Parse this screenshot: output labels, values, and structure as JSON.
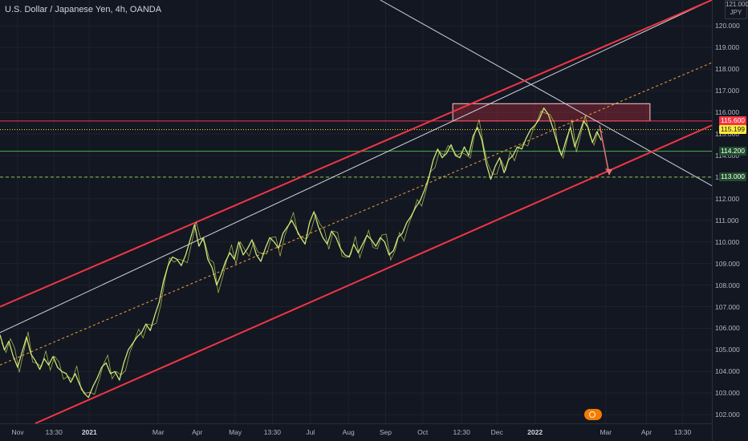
{
  "header": {
    "title": "U.S. Dollar / Japanese Yen, 4h, OANDA"
  },
  "currency_badge": {
    "top": "121.000",
    "label": "JPY"
  },
  "price_labels": [
    {
      "value": "115.600",
      "bg": "#f23645",
      "fg": "#ffffff"
    },
    {
      "value": "115.199",
      "bg": "#ffeb3b",
      "fg": "#131722"
    },
    {
      "value": "114.200",
      "bg": "#1e4d2b",
      "fg": "#ffffff"
    },
    {
      "value": "113.000",
      "bg": "#1e4d2b",
      "fg": "#ffffff"
    }
  ],
  "colors": {
    "background": "#131722",
    "grid": "#1e222d",
    "price_line": "#c8e67a",
    "price_line_alt": "#e8ea5a",
    "channel": "#f23645",
    "midline": "#f5a13a",
    "trendline": "#d1d4dc",
    "resistance_zone": "#f23645",
    "support_line": "#4caf50"
  },
  "chart_data": {
    "type": "line",
    "title": "U.S. Dollar / Japanese Yen, 4h, OANDA",
    "xlabel": "",
    "ylabel": "",
    "ylim": [
      101.6,
      121.2
    ],
    "y_ticks": [
      "102.000",
      "103.000",
      "104.000",
      "105.000",
      "106.000",
      "107.000",
      "108.000",
      "109.000",
      "110.000",
      "111.000",
      "112.000",
      "113.000",
      "114.000",
      "115.000",
      "116.000",
      "117.000",
      "118.000",
      "119.000",
      "120.000"
    ],
    "x_ticks": [
      {
        "label": "Nov",
        "t": 2.0,
        "year": false
      },
      {
        "label": "13:30",
        "t": 6.1,
        "year": false
      },
      {
        "label": "2021",
        "t": 10.1,
        "year": true
      },
      {
        "label": "Mar",
        "t": 17.9,
        "year": false
      },
      {
        "label": "Apr",
        "t": 22.3,
        "year": false
      },
      {
        "label": "May",
        "t": 26.6,
        "year": false
      },
      {
        "label": "13:30",
        "t": 30.8,
        "year": false
      },
      {
        "label": "Jul",
        "t": 35.1,
        "year": false
      },
      {
        "label": "Aug",
        "t": 39.4,
        "year": false
      },
      {
        "label": "Sep",
        "t": 43.6,
        "year": false
      },
      {
        "label": "Oct",
        "t": 47.8,
        "year": false
      },
      {
        "label": "12:30",
        "t": 52.2,
        "year": false
      },
      {
        "label": "Dec",
        "t": 56.2,
        "year": false
      },
      {
        "label": "2022",
        "t": 60.5,
        "year": true
      },
      {
        "label": "Mar",
        "t": 68.5,
        "year": false
      },
      {
        "label": "Apr",
        "t": 73.1,
        "year": false
      },
      {
        "label": "13:30",
        "t": 77.2,
        "year": false
      }
    ],
    "series": [
      {
        "values": [
          [
            0,
            105.7
          ],
          [
            0.5,
            105.0
          ],
          [
            1.0,
            105.4
          ],
          [
            1.5,
            104.7
          ],
          [
            2.0,
            104.2
          ],
          [
            2.5,
            104.9
          ],
          [
            3.0,
            105.6
          ],
          [
            3.5,
            104.8
          ],
          [
            4.0,
            104.5
          ],
          [
            4.5,
            104.1
          ],
          [
            5.0,
            104.6
          ],
          [
            5.5,
            104.3
          ],
          [
            6.0,
            104.7
          ],
          [
            6.5,
            104.2
          ],
          [
            7.0,
            104.0
          ],
          [
            7.5,
            103.9
          ],
          [
            8.0,
            103.5
          ],
          [
            8.5,
            103.9
          ],
          [
            9.0,
            103.4
          ],
          [
            9.5,
            103.0
          ],
          [
            10.0,
            102.8
          ],
          [
            10.5,
            103.3
          ],
          [
            11.0,
            103.7
          ],
          [
            11.5,
            104.2
          ],
          [
            12.0,
            104.4
          ],
          [
            12.5,
            103.9
          ],
          [
            13.0,
            104.0
          ],
          [
            13.5,
            103.6
          ],
          [
            14.0,
            104.4
          ],
          [
            14.5,
            105.0
          ],
          [
            15.0,
            105.3
          ],
          [
            15.5,
            105.6
          ],
          [
            16.0,
            105.8
          ],
          [
            16.5,
            106.2
          ],
          [
            17.0,
            105.9
          ],
          [
            17.5,
            106.6
          ],
          [
            18.0,
            107.2
          ],
          [
            18.5,
            108.2
          ],
          [
            19.0,
            108.9
          ],
          [
            19.5,
            109.3
          ],
          [
            20.0,
            109.2
          ],
          [
            20.5,
            108.9
          ],
          [
            21.0,
            109.4
          ],
          [
            21.5,
            110.1
          ],
          [
            22.0,
            110.8
          ],
          [
            22.5,
            109.8
          ],
          [
            23.0,
            110.2
          ],
          [
            23.5,
            109.2
          ],
          [
            24.0,
            108.8
          ],
          [
            24.5,
            108.0
          ],
          [
            25.0,
            108.5
          ],
          [
            25.5,
            109.1
          ],
          [
            26.0,
            109.5
          ],
          [
            26.5,
            109.2
          ],
          [
            27.0,
            110.0
          ],
          [
            27.5,
            109.4
          ],
          [
            28.0,
            109.7
          ],
          [
            28.5,
            110.1
          ],
          [
            29.0,
            109.4
          ],
          [
            29.5,
            109.1
          ],
          [
            30.0,
            109.7
          ],
          [
            30.5,
            110.2
          ],
          [
            31.0,
            110.0
          ],
          [
            31.5,
            109.7
          ],
          [
            32.0,
            110.4
          ],
          [
            32.5,
            110.7
          ],
          [
            33.0,
            111.0
          ],
          [
            33.5,
            110.6
          ],
          [
            34.0,
            110.2
          ],
          [
            34.5,
            109.9
          ],
          [
            35.0,
            110.9
          ],
          [
            35.5,
            111.4
          ],
          [
            36.0,
            110.7
          ],
          [
            36.5,
            110.2
          ],
          [
            37.0,
            109.9
          ],
          [
            37.5,
            110.5
          ],
          [
            38.0,
            110.2
          ],
          [
            38.5,
            109.7
          ],
          [
            39.0,
            109.4
          ],
          [
            39.5,
            109.3
          ],
          [
            40.0,
            109.9
          ],
          [
            40.5,
            109.5
          ],
          [
            41.0,
            109.9
          ],
          [
            41.5,
            110.3
          ],
          [
            42.0,
            110.1
          ],
          [
            42.5,
            109.8
          ],
          [
            43.0,
            110.2
          ],
          [
            43.5,
            110.0
          ],
          [
            44.0,
            109.4
          ],
          [
            44.5,
            109.6
          ],
          [
            45.0,
            110.2
          ],
          [
            45.5,
            110.4
          ],
          [
            46.0,
            110.9
          ],
          [
            46.5,
            111.2
          ],
          [
            47.0,
            111.6
          ],
          [
            47.5,
            111.9
          ],
          [
            48.0,
            112.4
          ],
          [
            48.5,
            113.0
          ],
          [
            49.0,
            113.8
          ],
          [
            49.5,
            114.3
          ],
          [
            50.0,
            113.9
          ],
          [
            50.5,
            114.1
          ],
          [
            51.0,
            114.5
          ],
          [
            51.5,
            114.0
          ],
          [
            52.0,
            113.9
          ],
          [
            52.5,
            114.4
          ],
          [
            53.0,
            114.0
          ],
          [
            53.5,
            114.9
          ],
          [
            54.0,
            115.3
          ],
          [
            54.5,
            114.7
          ],
          [
            55.0,
            113.6
          ],
          [
            55.5,
            112.9
          ],
          [
            56.0,
            113.5
          ],
          [
            56.5,
            113.9
          ],
          [
            57.0,
            113.2
          ],
          [
            57.5,
            113.8
          ],
          [
            58.0,
            114.0
          ],
          [
            58.5,
            114.4
          ],
          [
            59.0,
            114.3
          ],
          [
            59.5,
            114.8
          ],
          [
            60.0,
            115.2
          ],
          [
            60.5,
            115.4
          ],
          [
            61.0,
            115.7
          ],
          [
            61.5,
            116.2
          ],
          [
            62.0,
            115.9
          ],
          [
            62.5,
            115.3
          ],
          [
            63.0,
            114.6
          ],
          [
            63.5,
            114.0
          ],
          [
            64.0,
            114.7
          ],
          [
            64.5,
            115.3
          ],
          [
            65.0,
            114.4
          ],
          [
            65.5,
            115.0
          ],
          [
            66.0,
            115.6
          ],
          [
            66.5,
            115.3
          ],
          [
            67.0,
            114.6
          ],
          [
            67.5,
            115.1
          ],
          [
            68.0,
            114.7
          ]
        ]
      }
    ],
    "annotations": {
      "resistance_zone": {
        "y_low": 115.6,
        "y_high": 116.4,
        "t_start": 51.2,
        "t_end": 73.5
      },
      "horizontal_lines": [
        {
          "y": 115.6,
          "style": "solid",
          "color": "#f23645"
        },
        {
          "y": 115.199,
          "style": "dotted",
          "color": "#ffeb3b"
        },
        {
          "y": 114.2,
          "style": "solid",
          "color": "#4caf50"
        },
        {
          "y": 113.0,
          "style": "dashed",
          "color": "#8bc34a"
        }
      ],
      "channel_upper": [
        [
          0,
          107.0
        ],
        [
          80.5,
          121.2
        ]
      ],
      "channel_lower": [
        [
          4,
          101.6
        ],
        [
          80.5,
          115.4
        ]
      ],
      "channel_mid": [
        [
          0,
          104.3
        ],
        [
          80.5,
          118.3
        ]
      ],
      "white_trendline": [
        [
          0,
          105.8
        ],
        [
          80.5,
          121.2
        ]
      ],
      "white_downtrend": [
        [
          43,
          121.2
        ],
        [
          80.5,
          112.6
        ]
      ],
      "projection_arrow": [
        [
          67.8,
          115.4
        ],
        [
          68.9,
          113.1
        ]
      ]
    }
  }
}
